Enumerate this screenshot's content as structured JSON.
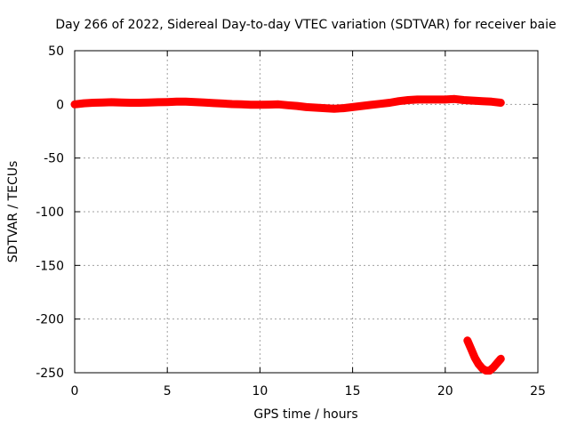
{
  "chart_data": {
    "type": "scatter",
    "title": "Day 266 of 2022, Sidereal Day-to-day VTEC variation (SDTVAR) for receiver baie",
    "xlabel": "GPS time / hours",
    "ylabel": "SDTVAR / TECUs",
    "xlim": [
      0,
      25
    ],
    "ylim": [
      -250,
      50
    ],
    "xticks": [
      0,
      5,
      10,
      15,
      20,
      25
    ],
    "yticks": [
      50,
      0,
      -50,
      -100,
      -150,
      -200,
      -250
    ],
    "grid": true,
    "series": [
      {
        "name": "SDTVAR",
        "color": "#ff0000",
        "marker": "plus",
        "segments": [
          {
            "x": [
              0,
              0.5,
              1,
              1.5,
              2,
              2.5,
              3,
              3.5,
              4,
              4.5,
              5,
              5.5,
              6,
              6.5,
              7,
              7.5,
              8,
              8.5,
              9,
              9.5,
              10,
              10.5,
              11,
              11.5,
              12,
              12.5,
              13,
              13.5,
              14,
              14.5,
              15,
              15.5,
              16,
              16.5,
              17,
              17.5,
              18,
              18.5,
              19,
              19.5,
              20,
              20.5,
              21,
              21.5,
              22,
              22.5,
              23
            ],
            "y": [
              0,
              1,
              1.5,
              1.8,
              2,
              1.8,
              1.5,
              1.5,
              1.8,
              2,
              2.2,
              2.5,
              2.5,
              2.2,
              1.8,
              1.2,
              0.8,
              0.3,
              0,
              -0.3,
              -0.3,
              -0.2,
              0,
              -0.8,
              -1.5,
              -2.5,
              -3,
              -3.5,
              -4,
              -3.5,
              -2.5,
              -1.5,
              -0.5,
              0.5,
              1.5,
              3,
              4,
              4.5,
              4.5,
              4.5,
              4.5,
              5,
              4,
              3.5,
              3,
              2.5,
              1.5
            ]
          },
          {
            "x": [
              21.2,
              21.4,
              21.6,
              21.8,
              22,
              22.2,
              22.4,
              22.6,
              22.8,
              23
            ],
            "y": [
              -220,
              -228,
              -236,
              -242,
              -246,
              -248,
              -248,
              -245,
              -241,
              -237
            ]
          }
        ]
      }
    ]
  }
}
